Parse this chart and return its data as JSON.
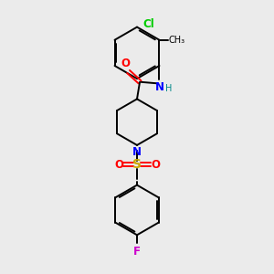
{
  "bg_color": "#ebebeb",
  "bond_color": "#000000",
  "atom_colors": {
    "O": "#ff0000",
    "N": "#0000ff",
    "S": "#ccaa00",
    "Cl": "#00cc00",
    "F": "#cc00cc",
    "H": "#008888",
    "C": "#000000"
  },
  "font_size": 8.5,
  "line_width": 1.4
}
